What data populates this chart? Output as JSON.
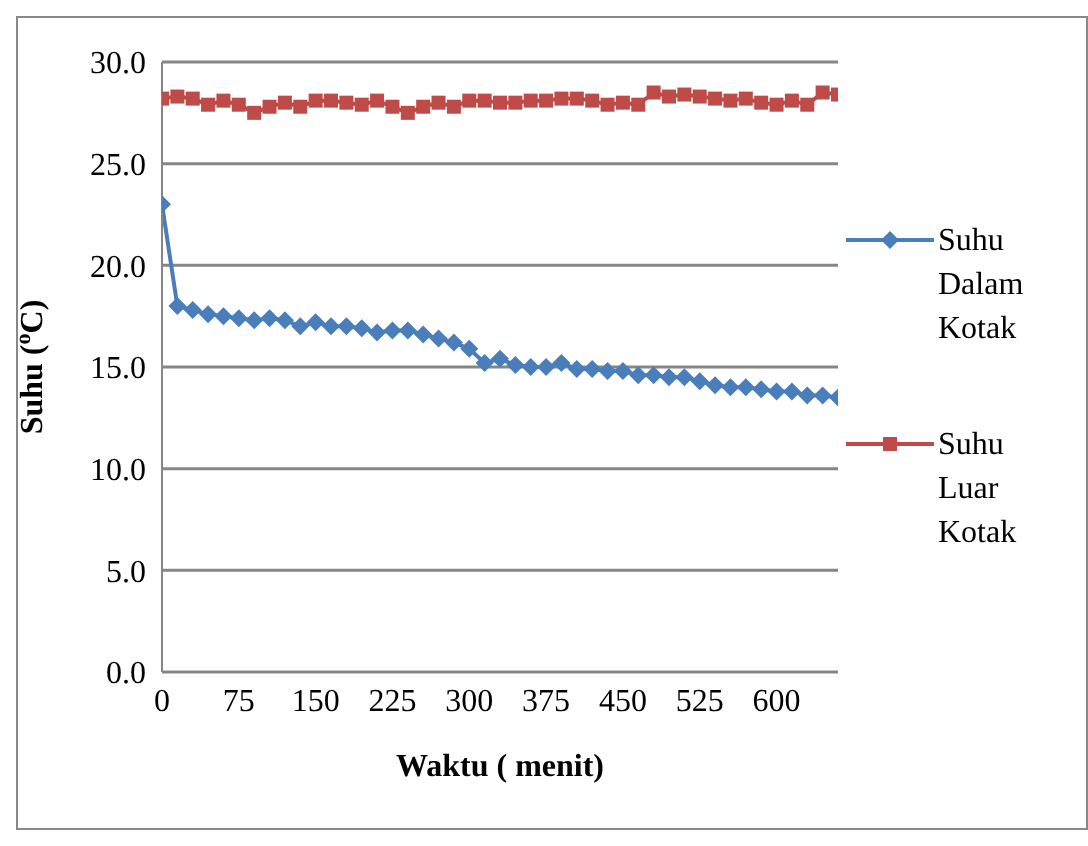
{
  "chart_data": {
    "type": "line",
    "xlabel": "Waktu ( menit)",
    "ylabel": "Suhu ($^{o}$C)",
    "x": [
      0,
      15,
      30,
      45,
      60,
      75,
      90,
      105,
      120,
      135,
      150,
      165,
      180,
      195,
      210,
      225,
      240,
      255,
      270,
      285,
      300,
      315,
      330,
      345,
      360,
      375,
      390,
      405,
      420,
      435,
      450,
      465,
      480,
      495,
      510,
      525,
      540,
      555,
      570,
      585,
      600,
      615,
      630,
      645,
      660
    ],
    "series": [
      {
        "name": "Suhu Dalam Kotak",
        "color": "#4a7ebb",
        "marker": "diamond",
        "values": [
          23.0,
          18.0,
          17.8,
          17.6,
          17.5,
          17.4,
          17.3,
          17.4,
          17.3,
          17.0,
          17.2,
          17.0,
          17.0,
          16.9,
          16.7,
          16.8,
          16.8,
          16.6,
          16.4,
          16.2,
          15.9,
          15.2,
          15.4,
          15.1,
          15.0,
          15.0,
          15.2,
          14.9,
          14.9,
          14.8,
          14.8,
          14.6,
          14.6,
          14.5,
          14.5,
          14.3,
          14.1,
          14.0,
          14.0,
          13.9,
          13.8,
          13.8,
          13.6,
          13.6,
          13.5
        ]
      },
      {
        "name": "Suhu Luar Kotak",
        "color": "#be4b48",
        "marker": "square",
        "values": [
          28.2,
          28.3,
          28.2,
          27.9,
          28.1,
          27.9,
          27.5,
          27.8,
          28.0,
          27.8,
          28.1,
          28.1,
          28.0,
          27.9,
          28.1,
          27.8,
          27.5,
          27.8,
          28.0,
          27.8,
          28.1,
          28.1,
          28.0,
          28.0,
          28.1,
          28.1,
          28.2,
          28.2,
          28.1,
          27.9,
          28.0,
          27.9,
          28.5,
          28.3,
          28.4,
          28.3,
          28.2,
          28.1,
          28.2,
          28.0,
          27.9,
          28.1,
          27.9,
          28.5,
          28.4
        ]
      }
    ],
    "xlim": [
      0,
      660
    ],
    "xticks": [
      0,
      75,
      150,
      225,
      300,
      375,
      450,
      525,
      600
    ],
    "ylim": [
      0,
      30
    ],
    "yticks": [
      {
        "value": 0,
        "label": "0.0"
      },
      {
        "value": 5,
        "label": "5.0"
      },
      {
        "value": 10,
        "label": "10.0"
      },
      {
        "value": 15,
        "label": "15.0"
      },
      {
        "value": 20,
        "label": "20.0"
      },
      {
        "value": 25,
        "label": "25.0"
      },
      {
        "value": 30,
        "label": "30.0"
      }
    ],
    "grid": "y",
    "legend": "right",
    "line_style": "solid"
  }
}
